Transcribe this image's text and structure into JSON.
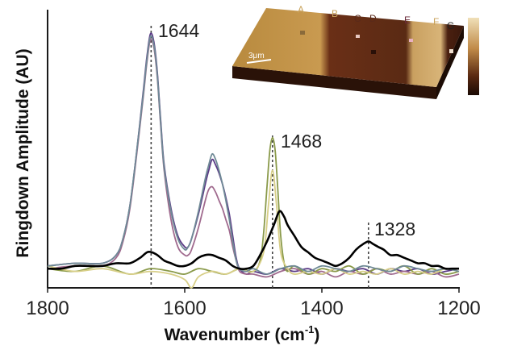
{
  "chart_data": {
    "type": "line",
    "xlabel_main": "Wavenumber (cm",
    "xlabel_sup": "-1",
    "xlabel_end": ")",
    "ylabel": "Ringdown Amplitude (AU)",
    "xlim": [
      1800,
      1200
    ],
    "x_ticks": [
      "1800",
      "1600",
      "1400",
      "1200"
    ],
    "x_tick_values": [
      1800,
      1600,
      1400,
      1200
    ],
    "grid": false,
    "legend": "none",
    "peak_markers": [
      {
        "x": 1649,
        "label": "1644"
      },
      {
        "x": 1472,
        "label": "1468"
      },
      {
        "x": 1332,
        "label": "1328"
      }
    ],
    "series": [
      {
        "color": "#5b3b86",
        "x": [
          1800,
          1760,
          1720,
          1700,
          1690,
          1680,
          1670,
          1660,
          1655,
          1650,
          1645,
          1640,
          1635,
          1630,
          1620,
          1610,
          1600,
          1595,
          1590,
          1580,
          1570,
          1565,
          1560,
          1555,
          1550,
          1545,
          1540,
          1535,
          1530,
          1525,
          1520,
          1510,
          1500,
          1480,
          1460,
          1440,
          1420,
          1400,
          1380,
          1360,
          1340,
          1320,
          1300,
          1280,
          1260,
          1240,
          1220,
          1200
        ],
        "y": [
          0.03,
          0.04,
          0.04,
          0.07,
          0.13,
          0.25,
          0.45,
          0.68,
          0.8,
          0.88,
          0.85,
          0.74,
          0.56,
          0.4,
          0.24,
          0.14,
          0.1,
          0.1,
          0.13,
          0.22,
          0.33,
          0.38,
          0.42,
          0.4,
          0.37,
          0.33,
          0.28,
          0.22,
          0.14,
          0.06,
          0.02,
          0.0,
          0.01,
          0.0,
          0.02,
          0.01,
          0.02,
          0.0,
          0.02,
          0.01,
          0.02,
          0.0,
          0.02,
          0.01,
          0.02,
          0.0,
          0.01,
          0.02
        ]
      },
      {
        "color": "#a06a8e",
        "x": [
          1800,
          1760,
          1720,
          1700,
          1690,
          1680,
          1670,
          1660,
          1655,
          1650,
          1645,
          1640,
          1635,
          1630,
          1620,
          1610,
          1600,
          1595,
          1590,
          1580,
          1570,
          1565,
          1560,
          1555,
          1550,
          1545,
          1540,
          1535,
          1530,
          1525,
          1520,
          1510,
          1500,
          1480,
          1460,
          1440,
          1420,
          1400,
          1380,
          1360,
          1340,
          1320,
          1300,
          1280,
          1260,
          1240,
          1220,
          1200
        ],
        "y": [
          0.02,
          0.03,
          0.03,
          0.06,
          0.12,
          0.24,
          0.44,
          0.66,
          0.78,
          0.86,
          0.83,
          0.72,
          0.54,
          0.38,
          0.2,
          0.1,
          0.07,
          0.07,
          0.09,
          0.17,
          0.27,
          0.31,
          0.32,
          0.3,
          0.27,
          0.24,
          0.2,
          0.16,
          0.1,
          0.05,
          0.01,
          0.0,
          0.0,
          -0.01,
          0.01,
          0.02,
          0.0,
          0.01,
          -0.01,
          0.01,
          0.0,
          0.02,
          0.0,
          0.01,
          0.0,
          0.01,
          -0.01,
          0.0
        ]
      },
      {
        "color": "#8a9a4a",
        "x": [
          1800,
          1760,
          1720,
          1680,
          1650,
          1620,
          1600,
          1580,
          1560,
          1540,
          1520,
          1500,
          1490,
          1485,
          1480,
          1476,
          1472,
          1468,
          1464,
          1460,
          1455,
          1450,
          1440,
          1420,
          1400,
          1380,
          1360,
          1340,
          1320,
          1300,
          1280,
          1260,
          1240,
          1220,
          1200
        ],
        "y": [
          0.02,
          0.01,
          0.03,
          0.0,
          0.02,
          0.01,
          0.0,
          0.02,
          0.01,
          0.0,
          0.02,
          0.01,
          0.05,
          0.15,
          0.32,
          0.45,
          0.5,
          0.45,
          0.3,
          0.14,
          0.04,
          0.01,
          0.03,
          0.0,
          0.02,
          0.01,
          0.03,
          0.0,
          0.02,
          0.01,
          0.03,
          0.0,
          0.02,
          0.0,
          0.01
        ]
      },
      {
        "color": "#d8cf88",
        "x": [
          1800,
          1760,
          1720,
          1680,
          1650,
          1620,
          1600,
          1590,
          1580,
          1560,
          1540,
          1520,
          1500,
          1485,
          1478,
          1472,
          1466,
          1460,
          1450,
          1440,
          1420,
          1400,
          1380,
          1360,
          1340,
          1320,
          1300,
          1280,
          1260,
          1240,
          1220,
          1200
        ],
        "y": [
          0.03,
          0.01,
          0.02,
          0.0,
          0.01,
          0.0,
          -0.02,
          -0.05,
          -0.01,
          0.01,
          0.0,
          0.02,
          0.01,
          0.08,
          0.25,
          0.38,
          0.25,
          0.08,
          0.02,
          0.0,
          0.01,
          0.0,
          0.02,
          0.0,
          0.01,
          0.0,
          0.02,
          0.0,
          0.01,
          0.0,
          0.02,
          0.01
        ]
      },
      {
        "color": "#6f8a96",
        "x": [
          1800,
          1760,
          1720,
          1700,
          1690,
          1680,
          1670,
          1660,
          1655,
          1650,
          1645,
          1640,
          1635,
          1630,
          1620,
          1610,
          1600,
          1595,
          1590,
          1580,
          1570,
          1565,
          1560,
          1555,
          1550,
          1545,
          1540,
          1535,
          1530,
          1525,
          1520,
          1510,
          1500,
          1480,
          1460,
          1440,
          1420,
          1400,
          1380,
          1360,
          1340,
          1320,
          1300,
          1280,
          1260,
          1240,
          1220,
          1200
        ],
        "y": [
          0.03,
          0.04,
          0.04,
          0.07,
          0.13,
          0.25,
          0.45,
          0.67,
          0.79,
          0.87,
          0.84,
          0.73,
          0.55,
          0.39,
          0.23,
          0.13,
          0.09,
          0.1,
          0.13,
          0.23,
          0.35,
          0.4,
          0.44,
          0.42,
          0.38,
          0.33,
          0.27,
          0.2,
          0.12,
          0.05,
          0.02,
          0.01,
          0.02,
          0.0,
          0.02,
          0.03,
          0.01,
          0.03,
          0.02,
          0.01,
          0.03,
          0.02,
          0.01,
          0.03,
          0.02,
          0.01,
          0.02,
          0.01
        ]
      },
      {
        "color": "#000000",
        "x": [
          1800,
          1780,
          1760,
          1740,
          1720,
          1700,
          1680,
          1665,
          1655,
          1648,
          1640,
          1630,
          1620,
          1610,
          1600,
          1590,
          1580,
          1570,
          1560,
          1550,
          1540,
          1530,
          1520,
          1510,
          1500,
          1490,
          1480,
          1470,
          1462,
          1455,
          1450,
          1440,
          1430,
          1420,
          1410,
          1400,
          1390,
          1380,
          1370,
          1360,
          1350,
          1340,
          1332,
          1325,
          1318,
          1310,
          1300,
          1290,
          1280,
          1270,
          1260,
          1250,
          1240,
          1230,
          1220,
          1210,
          1200
        ],
        "y": [
          0.02,
          0.02,
          0.03,
          0.03,
          0.03,
          0.04,
          0.04,
          0.06,
          0.08,
          0.08,
          0.07,
          0.05,
          0.04,
          0.03,
          0.03,
          0.04,
          0.06,
          0.07,
          0.07,
          0.06,
          0.05,
          0.03,
          0.02,
          0.02,
          0.03,
          0.07,
          0.12,
          0.18,
          0.23,
          0.21,
          0.18,
          0.14,
          0.1,
          0.08,
          0.06,
          0.05,
          0.04,
          0.03,
          0.04,
          0.06,
          0.09,
          0.11,
          0.12,
          0.11,
          0.1,
          0.09,
          0.07,
          0.07,
          0.06,
          0.05,
          0.04,
          0.04,
          0.03,
          0.03,
          0.02,
          0.02,
          0.02
        ]
      }
    ]
  },
  "inset": {
    "letters": [
      {
        "text": "A",
        "color": "#c8a25a"
      },
      {
        "text": "B",
        "color": "#c8a25a"
      },
      {
        "text": "C",
        "color": "#5a2a1a"
      },
      {
        "text": "D",
        "color": "#5a2a1a"
      },
      {
        "text": "E",
        "color": "#6a2a3a"
      },
      {
        "text": "F",
        "color": "#c8a25a"
      },
      {
        "text": "G",
        "color": "#222222"
      }
    ],
    "scale_label": "3μm"
  }
}
